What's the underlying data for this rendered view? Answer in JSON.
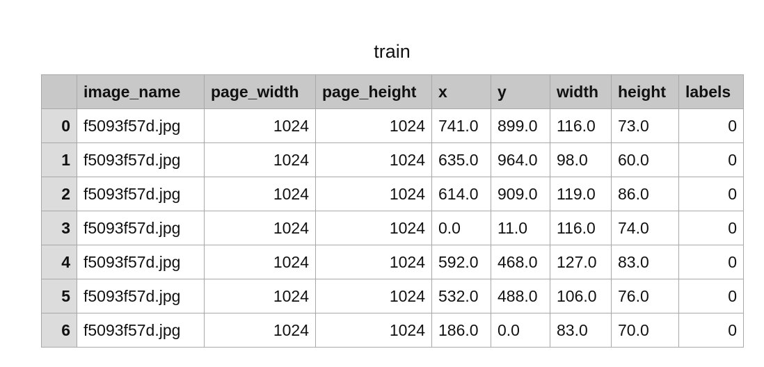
{
  "title": "train",
  "columns": [
    "",
    "image_name",
    "page_width",
    "page_height",
    "x",
    "y",
    "width",
    "height",
    "labels"
  ],
  "rows": [
    {
      "index": "0",
      "image_name": "f5093f57d.jpg",
      "page_width": "1024",
      "page_height": "1024",
      "x": "741.0",
      "y": "899.0",
      "width": "116.0",
      "height": "73.0",
      "labels": "0"
    },
    {
      "index": "1",
      "image_name": "f5093f57d.jpg",
      "page_width": "1024",
      "page_height": "1024",
      "x": "635.0",
      "y": "964.0",
      "width": "98.0",
      "height": "60.0",
      "labels": "0"
    },
    {
      "index": "2",
      "image_name": "f5093f57d.jpg",
      "page_width": "1024",
      "page_height": "1024",
      "x": "614.0",
      "y": "909.0",
      "width": "119.0",
      "height": "86.0",
      "labels": "0"
    },
    {
      "index": "3",
      "image_name": "f5093f57d.jpg",
      "page_width": "1024",
      "page_height": "1024",
      "x": "0.0",
      "y": "11.0",
      "width": "116.0",
      "height": "74.0",
      "labels": "0"
    },
    {
      "index": "4",
      "image_name": "f5093f57d.jpg",
      "page_width": "1024",
      "page_height": "1024",
      "x": "592.0",
      "y": "468.0",
      "width": "127.0",
      "height": "83.0",
      "labels": "0"
    },
    {
      "index": "5",
      "image_name": "f5093f57d.jpg",
      "page_width": "1024",
      "page_height": "1024",
      "x": "532.0",
      "y": "488.0",
      "width": "106.0",
      "height": "76.0",
      "labels": "0"
    },
    {
      "index": "6",
      "image_name": "f5093f57d.jpg",
      "page_width": "1024",
      "page_height": "1024",
      "x": "186.0",
      "y": "0.0",
      "width": "83.0",
      "height": "70.0",
      "labels": "0"
    }
  ]
}
